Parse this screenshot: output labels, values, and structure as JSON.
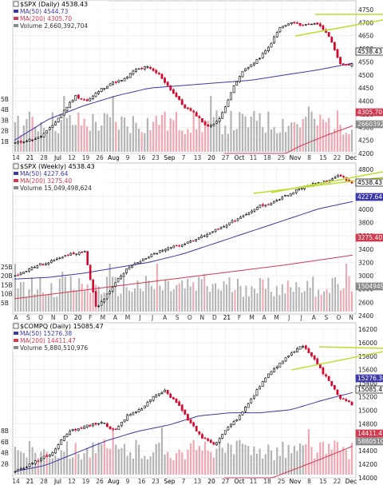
{
  "panels": [
    {
      "title": "$SPX (Daily) 4538.43",
      "legend": [
        {
          "label": "MA(50) 4544.73",
          "color": "#3a3aa8"
        },
        {
          "label": "MA(200) 4305.70",
          "color": "#d23a50"
        },
        {
          "label": "Volume 2,660,392,704",
          "color": "#8a8a8a"
        }
      ],
      "price_axis": [
        "4750",
        "4700",
        "4650",
        "4600",
        "4550",
        "4500",
        "4450",
        "4400",
        "4350",
        "4300",
        "4250",
        "4200"
      ],
      "vol_axis": [
        "5B",
        "4B",
        "3B",
        "2B",
        "1B"
      ],
      "x_labels": [
        "14",
        "21",
        "28",
        "Jul",
        "12",
        "19",
        "26",
        "Aug",
        "9",
        "16",
        "23",
        "Sep",
        "7",
        "13",
        "20",
        "27",
        "Oct",
        "11",
        "18",
        "25",
        "Nov",
        "8",
        "15",
        "22",
        "Dec"
      ],
      "badges": [
        {
          "label": "4538.43",
          "kind": "price"
        },
        {
          "label": "4305.70",
          "kind": "ma200"
        },
        {
          "label": "2660392",
          "kind": "vol"
        }
      ]
    },
    {
      "title": "$SPX (Weekly) 4538.43",
      "legend": [
        {
          "label": "MA(50) 4227.64",
          "color": "#3a3aa8"
        },
        {
          "label": "MA(200) 3275.40",
          "color": "#d23a50"
        },
        {
          "label": "Volume 15,049,498,624",
          "color": "#8a8a8a"
        }
      ],
      "price_axis": [
        "4800",
        "4600",
        "4400",
        "4000",
        "3800",
        "3600",
        "3400",
        "3200",
        "3000",
        "2800",
        "2600",
        "2400"
      ],
      "vol_axis": [
        "25B",
        "20B",
        "15B",
        "10B",
        "5B"
      ],
      "x_labels": [
        "A",
        "S",
        "O",
        "N",
        "D",
        "20",
        "F",
        "M",
        "A",
        "M",
        "J",
        "J",
        "A",
        "S",
        "O",
        "N",
        "D",
        "21",
        "F",
        "M",
        "A",
        "M",
        "J",
        "J",
        "A",
        "S",
        "O",
        "N"
      ],
      "badges": [
        {
          "label": "4538.43",
          "kind": "price"
        },
        {
          "label": "4227.64",
          "kind": "ma50"
        },
        {
          "label": "3275.40",
          "kind": "ma200"
        },
        {
          "label": "1504949",
          "kind": "vol"
        }
      ]
    },
    {
      "title": "$COMPQ (Daily) 15085.47",
      "legend": [
        {
          "label": "MA(50) 15276.38",
          "color": "#3a3aa8"
        },
        {
          "label": "MA(200) 14411.47",
          "color": "#d23a50"
        },
        {
          "label": "Volume 5,880,510,976",
          "color": "#8a8a8a"
        }
      ],
      "price_axis": [
        "16200",
        "16000",
        "15800",
        "15600",
        "15400",
        "15200",
        "15000",
        "14800",
        "14600",
        "14400",
        "14200",
        "14000"
      ],
      "vol_axis": [
        "8B",
        "6B",
        "4B",
        "2B"
      ],
      "x_labels": [
        "14",
        "21",
        "28",
        "Jul",
        "12",
        "19",
        "26",
        "Aug",
        "9",
        "16",
        "23",
        "Sep",
        "7",
        "13",
        "20",
        "27",
        "Oct",
        "11",
        "18",
        "25",
        "Nov",
        "8",
        "15",
        "22",
        "Dec"
      ],
      "badges": [
        {
          "label": "15276.38",
          "kind": "ma50"
        },
        {
          "label": "15085.47",
          "kind": "price"
        },
        {
          "label": "14411.47",
          "kind": "ma200"
        },
        {
          "label": "5880510",
          "kind": "vol"
        }
      ]
    }
  ],
  "chart_data": [
    {
      "type": "candlestick",
      "title": "$SPX (Daily) 4538.43",
      "y_range": [
        4200,
        4750
      ],
      "key_points": [
        4240,
        4250,
        4260,
        4300,
        4360,
        4420,
        4400,
        4440,
        4470,
        4480,
        4520,
        4530,
        4500,
        4440,
        4380,
        4350,
        4300,
        4330,
        4440,
        4520,
        4550,
        4600,
        4680,
        4700,
        4690,
        4700,
        4660,
        4540,
        4538.43
      ],
      "ma50": [
        4250,
        4330,
        4380,
        4420,
        4450,
        4460,
        4470,
        4480,
        4500,
        4520,
        4545
      ],
      "ma200": [
        4060,
        4120,
        4180,
        4230,
        4270,
        4305.7
      ],
      "trendlines": 2
    },
    {
      "type": "candlestick",
      "title": "$SPX (Weekly) 4538.43",
      "y_range": [
        2200,
        4800
      ],
      "key_points": [
        2900,
        3000,
        3100,
        3150,
        3250,
        3300,
        3350,
        2300,
        2600,
        2900,
        3100,
        3200,
        3300,
        3400,
        3450,
        3500,
        3600,
        3700,
        3800,
        3900,
        4000,
        4150,
        4200,
        4300,
        4400,
        4500,
        4550,
        4600,
        4700,
        4538.43
      ],
      "ma50": [
        2850,
        2880,
        2950,
        3050,
        3150,
        3300,
        3500,
        3700,
        3900,
        4100,
        4227.64
      ],
      "ma200": [
        2500,
        2650,
        2800,
        2950,
        3100,
        3275.4
      ],
      "trendlines": 2
    },
    {
      "type": "candlestick",
      "title": "$COMPQ (Daily) 15085.47",
      "y_range": [
        13900,
        16300
      ],
      "key_points": [
        14000,
        14100,
        14200,
        14300,
        14600,
        14700,
        14750,
        14800,
        14650,
        14900,
        15000,
        15200,
        15300,
        15100,
        14800,
        14550,
        14450,
        14700,
        14900,
        15200,
        15500,
        15700,
        15900,
        16050,
        15800,
        15500,
        15200,
        15085.47
      ],
      "ma50": [
        14000,
        14100,
        14300,
        14500,
        14650,
        14750,
        14900,
        14950,
        14950,
        15000,
        15150,
        15276.38
      ],
      "ma200": [
        13500,
        13800,
        14000,
        14200,
        14411.47
      ],
      "trendlines": 2
    }
  ]
}
